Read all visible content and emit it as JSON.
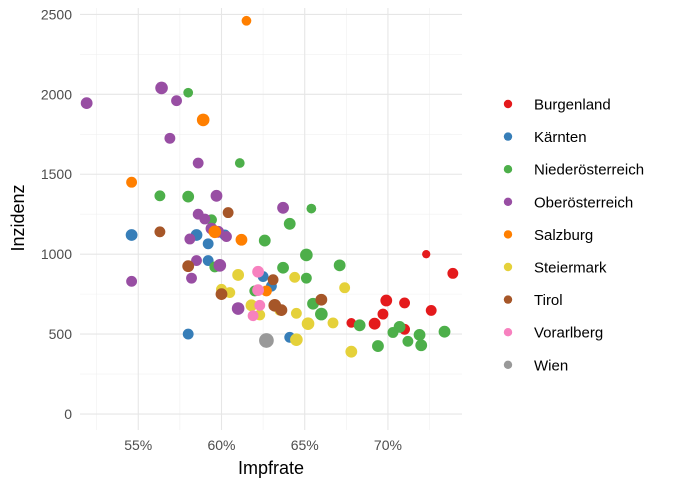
{
  "chart_data": {
    "type": "scatter",
    "title": "",
    "xlabel": "Impfrate",
    "ylabel": "Inzidenz",
    "xlim": [
      0.515,
      0.7445
    ],
    "ylim": [
      -100,
      2540
    ],
    "x_ticks": [
      0.55,
      0.6,
      0.65,
      0.7
    ],
    "x_tick_labels": [
      "55%",
      "60%",
      "65%",
      "70%"
    ],
    "y_ticks": [
      0,
      500,
      1000,
      1500,
      2000,
      2500
    ],
    "y_tick_labels": [
      "0",
      "500",
      "1000",
      "1500",
      "2000",
      "2500"
    ],
    "grid": true,
    "legend_position": "right",
    "series": [
      {
        "name": "Burgenland",
        "color": "#E41A1C",
        "points": [
          {
            "x": 0.723,
            "y": 1000,
            "s": 1
          },
          {
            "x": 0.739,
            "y": 880,
            "s": 3
          },
          {
            "x": 0.699,
            "y": 710,
            "s": 4
          },
          {
            "x": 0.71,
            "y": 695,
            "s": 3
          },
          {
            "x": 0.726,
            "y": 648,
            "s": 3
          },
          {
            "x": 0.697,
            "y": 625,
            "s": 3
          },
          {
            "x": 0.692,
            "y": 565,
            "s": 4
          },
          {
            "x": 0.71,
            "y": 530,
            "s": 3
          },
          {
            "x": 0.678,
            "y": 570,
            "s": 2
          }
        ]
      },
      {
        "name": "Kärnten",
        "color": "#377EB8",
        "points": [
          {
            "x": 0.546,
            "y": 1120,
            "s": 4
          },
          {
            "x": 0.585,
            "y": 1120,
            "s": 4
          },
          {
            "x": 0.592,
            "y": 1065,
            "s": 3
          },
          {
            "x": 0.602,
            "y": 1120,
            "s": 3
          },
          {
            "x": 0.592,
            "y": 960,
            "s": 3
          },
          {
            "x": 0.625,
            "y": 860,
            "s": 3
          },
          {
            "x": 0.63,
            "y": 800,
            "s": 3
          },
          {
            "x": 0.58,
            "y": 500,
            "s": 3
          },
          {
            "x": 0.641,
            "y": 480,
            "s": 3
          }
        ]
      },
      {
        "name": "Niederösterreich",
        "color": "#4DAF4A",
        "points": [
          {
            "x": 0.58,
            "y": 2010,
            "s": 2
          },
          {
            "x": 0.611,
            "y": 1570,
            "s": 2
          },
          {
            "x": 0.563,
            "y": 1365,
            "s": 3
          },
          {
            "x": 0.58,
            "y": 1360,
            "s": 4
          },
          {
            "x": 0.654,
            "y": 1285,
            "s": 2
          },
          {
            "x": 0.594,
            "y": 1215,
            "s": 3
          },
          {
            "x": 0.641,
            "y": 1190,
            "s": 4
          },
          {
            "x": 0.626,
            "y": 1085,
            "s": 4
          },
          {
            "x": 0.651,
            "y": 995,
            "s": 5
          },
          {
            "x": 0.671,
            "y": 930,
            "s": 4
          },
          {
            "x": 0.637,
            "y": 915,
            "s": 4
          },
          {
            "x": 0.596,
            "y": 920,
            "s": 3
          },
          {
            "x": 0.651,
            "y": 850,
            "s": 3
          },
          {
            "x": 0.62,
            "y": 770,
            "s": 3
          },
          {
            "x": 0.655,
            "y": 690,
            "s": 4
          },
          {
            "x": 0.66,
            "y": 625,
            "s": 5
          },
          {
            "x": 0.683,
            "y": 555,
            "s": 4
          },
          {
            "x": 0.707,
            "y": 545,
            "s": 4
          },
          {
            "x": 0.703,
            "y": 510,
            "s": 3
          },
          {
            "x": 0.719,
            "y": 495,
            "s": 4
          },
          {
            "x": 0.734,
            "y": 515,
            "s": 4
          },
          {
            "x": 0.712,
            "y": 455,
            "s": 3
          },
          {
            "x": 0.694,
            "y": 425,
            "s": 4
          },
          {
            "x": 0.72,
            "y": 430,
            "s": 4
          }
        ]
      },
      {
        "name": "Oberösterreich",
        "color": "#984EA3",
        "points": [
          {
            "x": 0.519,
            "y": 1945,
            "s": 4
          },
          {
            "x": 0.564,
            "y": 2040,
            "s": 5
          },
          {
            "x": 0.573,
            "y": 1960,
            "s": 3
          },
          {
            "x": 0.569,
            "y": 1725,
            "s": 3
          },
          {
            "x": 0.586,
            "y": 1570,
            "s": 3
          },
          {
            "x": 0.597,
            "y": 1365,
            "s": 4
          },
          {
            "x": 0.586,
            "y": 1250,
            "s": 3
          },
          {
            "x": 0.59,
            "y": 1220,
            "s": 3
          },
          {
            "x": 0.594,
            "y": 1160,
            "s": 4
          },
          {
            "x": 0.598,
            "y": 1140,
            "s": 4
          },
          {
            "x": 0.581,
            "y": 1095,
            "s": 3
          },
          {
            "x": 0.603,
            "y": 1110,
            "s": 3
          },
          {
            "x": 0.637,
            "y": 1290,
            "s": 4
          },
          {
            "x": 0.585,
            "y": 960,
            "s": 3
          },
          {
            "x": 0.599,
            "y": 930,
            "s": 5
          },
          {
            "x": 0.582,
            "y": 850,
            "s": 3
          },
          {
            "x": 0.546,
            "y": 830,
            "s": 3
          },
          {
            "x": 0.61,
            "y": 660,
            "s": 5
          }
        ]
      },
      {
        "name": "Salzburg",
        "color": "#FF7F00",
        "points": [
          {
            "x": 0.615,
            "y": 2460,
            "s": 2
          },
          {
            "x": 0.589,
            "y": 1840,
            "s": 5
          },
          {
            "x": 0.546,
            "y": 1450,
            "s": 3
          },
          {
            "x": 0.596,
            "y": 1140,
            "s": 5
          },
          {
            "x": 0.612,
            "y": 1090,
            "s": 4
          },
          {
            "x": 0.627,
            "y": 770,
            "s": 3
          }
        ]
      },
      {
        "name": "Steiermark",
        "color": "#E5D13A",
        "points": [
          {
            "x": 0.61,
            "y": 870,
            "s": 4
          },
          {
            "x": 0.644,
            "y": 855,
            "s": 3
          },
          {
            "x": 0.6,
            "y": 780,
            "s": 3
          },
          {
            "x": 0.605,
            "y": 760,
            "s": 3
          },
          {
            "x": 0.674,
            "y": 790,
            "s": 3
          },
          {
            "x": 0.618,
            "y": 680,
            "s": 4
          },
          {
            "x": 0.635,
            "y": 650,
            "s": 3
          },
          {
            "x": 0.623,
            "y": 620,
            "s": 3
          },
          {
            "x": 0.645,
            "y": 630,
            "s": 3
          },
          {
            "x": 0.652,
            "y": 565,
            "s": 5
          },
          {
            "x": 0.667,
            "y": 570,
            "s": 3
          },
          {
            "x": 0.645,
            "y": 465,
            "s": 5
          },
          {
            "x": 0.678,
            "y": 390,
            "s": 4
          }
        ]
      },
      {
        "name": "Tirol",
        "color": "#A65628",
        "points": [
          {
            "x": 0.563,
            "y": 1140,
            "s": 3
          },
          {
            "x": 0.604,
            "y": 1260,
            "s": 3
          },
          {
            "x": 0.58,
            "y": 925,
            "s": 4
          },
          {
            "x": 0.631,
            "y": 840,
            "s": 3
          },
          {
            "x": 0.6,
            "y": 750,
            "s": 4
          },
          {
            "x": 0.632,
            "y": 680,
            "s": 5
          },
          {
            "x": 0.636,
            "y": 650,
            "s": 4
          },
          {
            "x": 0.66,
            "y": 715,
            "s": 4
          }
        ]
      },
      {
        "name": "Vorarlberg",
        "color": "#F781BF",
        "points": [
          {
            "x": 0.622,
            "y": 890,
            "s": 4
          },
          {
            "x": 0.622,
            "y": 775,
            "s": 4
          },
          {
            "x": 0.623,
            "y": 680,
            "s": 3
          },
          {
            "x": 0.619,
            "y": 615,
            "s": 3
          }
        ]
      },
      {
        "name": "Wien",
        "color": "#999999",
        "points": [
          {
            "x": 0.627,
            "y": 460,
            "s": 8
          }
        ]
      }
    ]
  }
}
